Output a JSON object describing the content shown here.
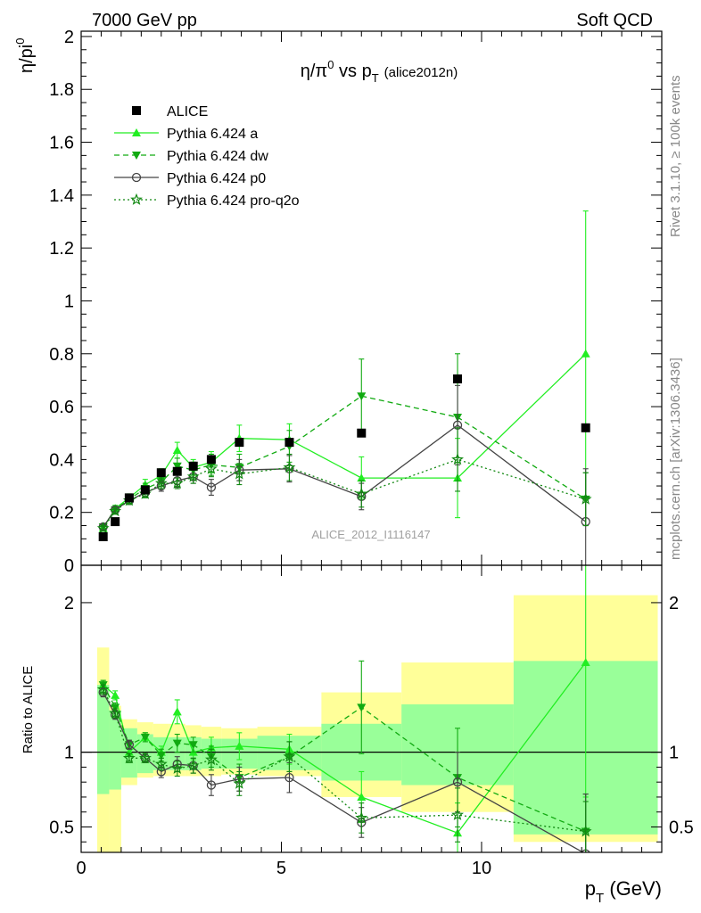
{
  "header": {
    "left": "7000 GeV pp",
    "right": "Soft QCD"
  },
  "side_labels": {
    "top": "Rivet 3.1.10, ≥ 100k events",
    "bottom": "mcplots.cern.ch [arXiv:1306.3436]"
  },
  "colors": {
    "data": "#000000",
    "pythia_a": "#22ee22",
    "pythia_dw": "#11aa11",
    "pythia_p0": "#444444",
    "pythia_proq2o": "#118811",
    "band_inner": "#99ff99",
    "band_outer": "#ffff99"
  },
  "chart_data": [
    {
      "type": "scatter",
      "title": "η/π⁰ vs p_T (alice2012n)",
      "title_main": "η/π",
      "title_sup": "0",
      "title_vs": " vs p",
      "title_sub": "T",
      "title_tag": "(alice2012n)",
      "ylabel": "η/pi⁰",
      "ylabel_main": "η/pi",
      "ylabel_sup": "0",
      "watermark": "ALICE_2012_I1116147",
      "xlim": [
        0,
        14.5
      ],
      "ylim": [
        0,
        2.02
      ],
      "yticks": [
        {
          "v": 0,
          "label": "0"
        },
        {
          "v": 0.2,
          "label": "0.2"
        },
        {
          "v": 0.4,
          "label": "0.4"
        },
        {
          "v": 0.6,
          "label": "0.6"
        },
        {
          "v": 0.8,
          "label": "0.8"
        },
        {
          "v": 1.0,
          "label": "1"
        },
        {
          "v": 1.2,
          "label": "1.2"
        },
        {
          "v": 1.4,
          "label": "1.4"
        },
        {
          "v": 1.6,
          "label": "1.6"
        },
        {
          "v": 1.8,
          "label": "1.8"
        },
        {
          "v": 2.0,
          "label": "2"
        }
      ],
      "legend": {
        "position": "top-left"
      },
      "data": {
        "name": "ALICE",
        "x": [
          0.55,
          0.85,
          1.2,
          1.6,
          2.0,
          2.4,
          2.8,
          3.25,
          3.95,
          5.2,
          7.0,
          9.4,
          12.6
        ],
        "y": [
          0.108,
          0.165,
          0.255,
          0.285,
          0.35,
          0.355,
          0.375,
          0.4,
          0.465,
          0.465,
          0.5,
          0.705,
          0.52
        ],
        "xerr": [
          0.15,
          0.15,
          0.2,
          0.2,
          0.2,
          0.2,
          0.2,
          0.25,
          0.45,
          0.8,
          1.0,
          1.4,
          1.85
        ]
      },
      "series": [
        {
          "name": "Pythia 6.424 a",
          "key": "a",
          "marker": "triangle-up",
          "dash": "",
          "y": [
            0.14,
            0.215,
            0.255,
            0.305,
            0.34,
            0.435,
            0.37,
            0.39,
            0.48,
            0.475,
            0.33,
            0.33,
            0.8
          ],
          "yerr": [
            0.01,
            0.012,
            0.015,
            0.02,
            0.025,
            0.03,
            0.03,
            0.04,
            0.05,
            0.06,
            0.08,
            0.15,
            0.54
          ]
        },
        {
          "name": "Pythia 6.424 dw",
          "key": "dw",
          "marker": "triangle-down",
          "dash": "6,4",
          "y": [
            0.145,
            0.21,
            0.25,
            0.29,
            0.315,
            0.375,
            0.36,
            0.38,
            0.37,
            0.45,
            0.64,
            0.56,
            0.25
          ],
          "yerr": [
            0.01,
            0.012,
            0.015,
            0.02,
            0.025,
            0.03,
            0.03,
            0.04,
            0.05,
            0.06,
            0.14,
            0.24,
            0.1
          ]
        },
        {
          "name": "Pythia 6.424 p0",
          "key": "p0",
          "marker": "circle-open",
          "dash": "",
          "y": [
            0.145,
            0.21,
            0.245,
            0.275,
            0.3,
            0.32,
            0.335,
            0.295,
            0.36,
            0.365,
            0.26,
            0.53,
            0.165
          ],
          "yerr": [
            0.01,
            0.012,
            0.015,
            0.015,
            0.02,
            0.025,
            0.025,
            0.03,
            0.04,
            0.05,
            0.05,
            0.15,
            0.2
          ]
        },
        {
          "name": "Pythia 6.424 pro-q2o",
          "key": "proq2o",
          "marker": "star",
          "dash": "2,3",
          "y": [
            0.14,
            0.205,
            0.245,
            0.27,
            0.31,
            0.31,
            0.335,
            0.365,
            0.345,
            0.37,
            0.27,
            0.4,
            0.25
          ],
          "yerr": [
            0.01,
            0.012,
            0.015,
            0.015,
            0.02,
            0.02,
            0.025,
            0.03,
            0.04,
            0.05,
            0.05,
            0.12,
            0.1
          ]
        }
      ]
    },
    {
      "type": "scatter",
      "ylabel": "Ratio to ALICE",
      "xlabel": "p_T (GeV)",
      "xlabel_main": "p",
      "xlabel_sub": "T",
      "xlabel_unit": " (GeV)",
      "xlim": [
        0,
        14.5
      ],
      "ylim": [
        0.33,
        2.25
      ],
      "xticks": [
        {
          "v": 0,
          "label": "0"
        },
        {
          "v": 5,
          "label": "5"
        },
        {
          "v": 10,
          "label": "10"
        }
      ],
      "yticks": [
        {
          "v": 0.5,
          "label": "0.5"
        },
        {
          "v": 1,
          "label": "1"
        },
        {
          "v": 2,
          "label": "2"
        }
      ],
      "reference_line": 1,
      "bands": {
        "x_edges": [
          0.4,
          0.7,
          1.0,
          1.4,
          1.8,
          2.2,
          2.6,
          3.0,
          3.5,
          4.4,
          6.0,
          8.0,
          10.8,
          14.4
        ],
        "inner": [
          [
            0.72,
            1.45
          ],
          [
            0.75,
            1.28
          ],
          [
            0.83,
            1.16
          ],
          [
            0.86,
            1.12
          ],
          [
            0.88,
            1.1
          ],
          [
            0.88,
            1.1
          ],
          [
            0.88,
            1.1
          ],
          [
            0.89,
            1.09
          ],
          [
            0.89,
            1.09
          ],
          [
            0.88,
            1.11
          ],
          [
            0.81,
            1.19
          ],
          [
            0.78,
            1.32
          ],
          [
            0.45,
            1.61
          ]
        ],
        "outer": [
          [
            0.0,
            1.7
          ],
          [
            0.0,
            1.31
          ],
          [
            0.78,
            1.22
          ],
          [
            0.83,
            1.2
          ],
          [
            0.84,
            1.19
          ],
          [
            0.84,
            1.19
          ],
          [
            0.84,
            1.18
          ],
          [
            0.84,
            1.17
          ],
          [
            0.85,
            1.16
          ],
          [
            0.84,
            1.17
          ],
          [
            0.7,
            1.4
          ],
          [
            0.6,
            1.6
          ],
          [
            0.4,
            2.05
          ]
        ]
      },
      "series": [
        {
          "name": "Pythia 6.424 a",
          "key": "a",
          "y": [
            1.45,
            1.38,
            1.0,
            1.1,
            1.0,
            1.27,
            1.0,
            1.03,
            1.04,
            1.02,
            0.7,
            0.46,
            1.6
          ],
          "yerr": [
            0.03,
            0.03,
            0.03,
            0.03,
            0.04,
            0.08,
            0.05,
            0.07,
            0.09,
            0.1,
            0.17,
            0.2,
            0.9
          ]
        },
        {
          "name": "Pythia 6.424 dw",
          "key": "dw",
          "y": [
            1.45,
            1.3,
            1.05,
            1.1,
            0.98,
            1.06,
            1.05,
            0.97,
            0.83,
            0.97,
            1.3,
            0.83,
            0.47
          ],
          "yerr": [
            0.03,
            0.03,
            0.03,
            0.03,
            0.04,
            0.06,
            0.05,
            0.07,
            0.09,
            0.1,
            0.31,
            0.33,
            0.25
          ]
        },
        {
          "name": "Pythia 6.424 p0",
          "key": "p0",
          "y": [
            1.4,
            1.25,
            1.05,
            0.96,
            0.87,
            0.92,
            0.91,
            0.78,
            0.82,
            0.83,
            0.53,
            0.8,
            0.32
          ],
          "yerr": [
            0.03,
            0.03,
            0.03,
            0.03,
            0.04,
            0.05,
            0.05,
            0.07,
            0.08,
            0.1,
            0.1,
            0.2,
            0.4
          ]
        },
        {
          "name": "Pythia 6.424 pro-q2o",
          "key": "proq2o",
          "y": [
            1.42,
            1.26,
            0.96,
            0.96,
            0.92,
            0.89,
            0.91,
            0.95,
            0.79,
            0.97,
            0.56,
            0.58,
            0.47
          ],
          "yerr": [
            0.03,
            0.03,
            0.03,
            0.03,
            0.04,
            0.05,
            0.05,
            0.07,
            0.08,
            0.1,
            0.1,
            0.18,
            0.2
          ]
        }
      ]
    }
  ]
}
